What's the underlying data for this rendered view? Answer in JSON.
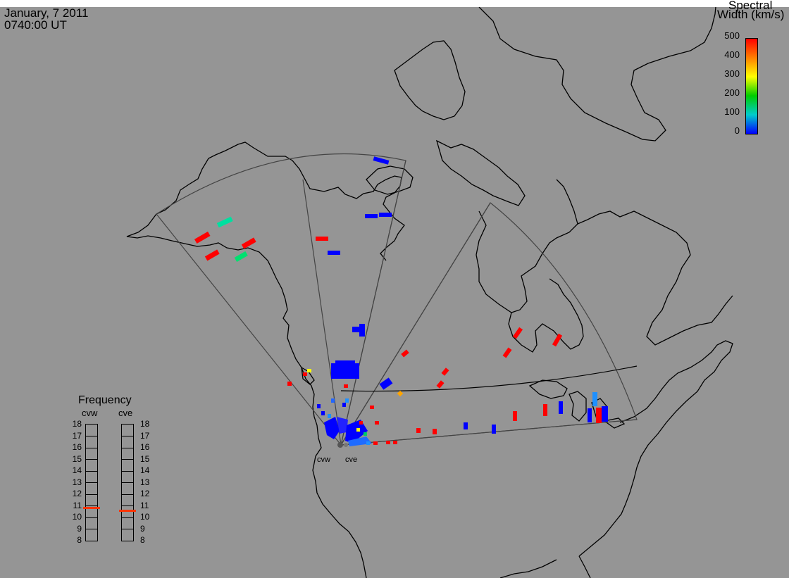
{
  "header": {
    "date": "January, 7 2011",
    "time": "0740:00 UT"
  },
  "colorbar": {
    "title_line1": "Spectral",
    "title_line2": "Width (km/s)",
    "ticks": [
      "500",
      "400",
      "300",
      "200",
      "100",
      "0"
    ],
    "stops": [
      "#ff0000",
      "#ff7f00",
      "#ffff00",
      "#00cc00",
      "#00cccc",
      "#0000ff"
    ]
  },
  "frequency": {
    "title": "Frequency",
    "radars": [
      "cvw",
      "cve"
    ],
    "ticks": [
      "18",
      "17",
      "16",
      "15",
      "14",
      "13",
      "12",
      "11",
      "10",
      "9",
      "8"
    ],
    "values_mhz": [
      10.8,
      10.6
    ],
    "marker_color": "#ff3300"
  },
  "sites": {
    "west": "cvw",
    "east": "cve"
  },
  "colors": {
    "background": "#959595",
    "coast": "#000000",
    "fov": "#444444"
  }
}
